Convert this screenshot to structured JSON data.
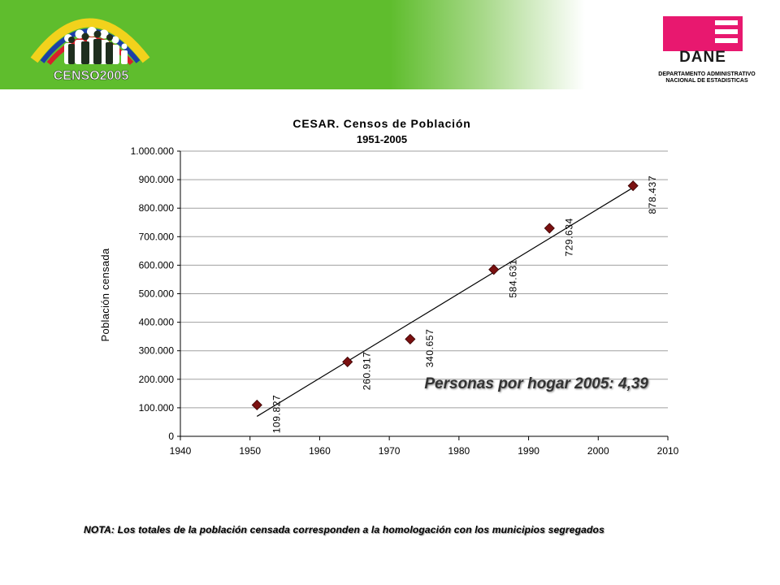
{
  "header": {
    "censo_logo_text": "CENSO2005",
    "dane_logo_text": "DANE",
    "dane_subtitle_line1": "DEPARTAMENTO ADMINISTRATIVO",
    "dane_subtitle_line2": "NACIONAL DE ESTADISTICAS"
  },
  "colors": {
    "header_green": "#5fbd2d",
    "dane_magenta": "#e8186f",
    "marker": "#7a1010"
  },
  "chart_data": {
    "type": "scatter",
    "title": "CESAR. Censos de Población",
    "subtitle": "1951-2005",
    "ylabel": "Población censada",
    "xlabel": "",
    "xlim": [
      1940,
      2010
    ],
    "ylim": [
      0,
      1000000
    ],
    "x_ticks": [
      "1940",
      "1950",
      "1960",
      "1970",
      "1980",
      "1990",
      "2000",
      "2010"
    ],
    "y_ticks": [
      "0",
      "100.000",
      "200.000",
      "300.000",
      "400.000",
      "500.000",
      "600.000",
      "700.000",
      "800.000",
      "900.000",
      "1.000.000"
    ],
    "grid": "horizontal",
    "points": [
      {
        "x": 1951,
        "y": 109827,
        "label": "109.827"
      },
      {
        "x": 1964,
        "y": 260917,
        "label": "260.917"
      },
      {
        "x": 1973,
        "y": 340657,
        "label": "340.657"
      },
      {
        "x": 1985,
        "y": 584631,
        "label": "584.631"
      },
      {
        "x": 1993,
        "y": 729634,
        "label": "729.634"
      },
      {
        "x": 2005,
        "y": 878437,
        "label": "878.437"
      }
    ],
    "trendline": {
      "x": [
        1951,
        2005
      ],
      "y": [
        70000,
        872000
      ]
    },
    "annotation": "Personas por hogar 2005: 4,39"
  },
  "note": "NOTA: Los totales de la población censada corresponden a la homologación con los municipios segregados"
}
